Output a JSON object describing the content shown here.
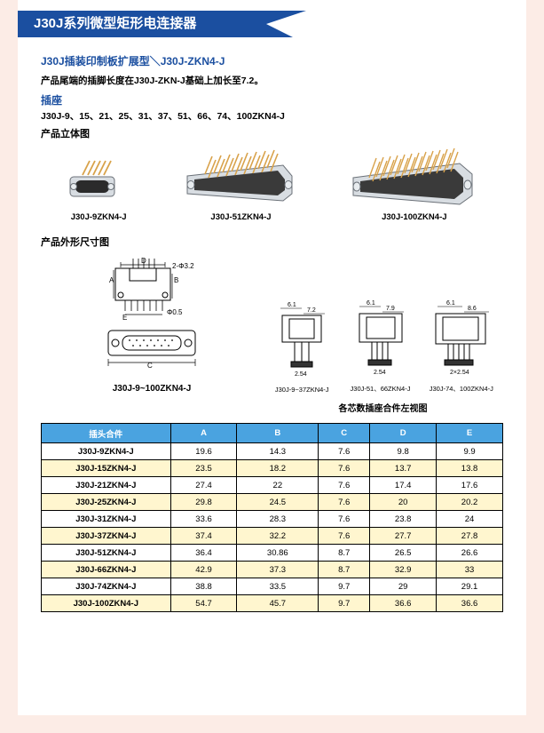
{
  "banner": {
    "title": "J30J系列微型矩形电连接器"
  },
  "header": {
    "subtitle": "J30J插装印制板扩展型＼J30J-ZKN4-J",
    "desc": "产品尾端的插脚长度在J30J-ZKN-J基础上加长至7.2。",
    "socket_title": "插座",
    "models": "J30J-9、15、21、25、31、37、51、66、74、100ZKN4-J",
    "view3d_label": "产品立体图",
    "outline_label": "产品外形尺寸图"
  },
  "products": {
    "items": [
      {
        "label": "J30J-9ZKN4-J"
      },
      {
        "label": "J30J-51ZKN4-J"
      },
      {
        "label": "J30J-100ZKN4-J"
      }
    ]
  },
  "drawings": {
    "left_caption": "J30J-9~100ZKN4-J",
    "right_caption": "各芯数插座合件左视图",
    "left_labels": {
      "D": "D",
      "hole1": "2-Φ3.2",
      "A": "A",
      "B": "B",
      "E": "E",
      "hole2": "Φ0.5",
      "C": "C"
    },
    "side_items": [
      {
        "top1": "6.1",
        "top2": "7.2",
        "bot1": "2.54",
        "cap": "J30J-9~37ZKN4-J"
      },
      {
        "top1": "6.1",
        "top2": "7.9",
        "bot1": "2.54",
        "cap": "J30J-51、66ZKN4-J"
      },
      {
        "top1": "6.1",
        "top2": "8.6",
        "bot1": "2×2.54",
        "cap": "J30J-74、100ZKN4-J"
      }
    ]
  },
  "table": {
    "header_part": "插头合件",
    "cols": [
      "A",
      "B",
      "C",
      "D",
      "E"
    ],
    "rows": [
      {
        "part": "J30J-9ZKN4-J",
        "vals": [
          "19.6",
          "14.3",
          "7.6",
          "9.8",
          "9.9"
        ],
        "alt": false
      },
      {
        "part": "J30J-15ZKN4-J",
        "vals": [
          "23.5",
          "18.2",
          "7.6",
          "13.7",
          "13.8"
        ],
        "alt": true
      },
      {
        "part": "J30J-21ZKN4-J",
        "vals": [
          "27.4",
          "22",
          "7.6",
          "17.4",
          "17.6"
        ],
        "alt": false
      },
      {
        "part": "J30J-25ZKN4-J",
        "vals": [
          "29.8",
          "24.5",
          "7.6",
          "20",
          "20.2"
        ],
        "alt": true
      },
      {
        "part": "J30J-31ZKN4-J",
        "vals": [
          "33.6",
          "28.3",
          "7.6",
          "23.8",
          "24"
        ],
        "alt": false
      },
      {
        "part": "J30J-37ZKN4-J",
        "vals": [
          "37.4",
          "32.2",
          "7.6",
          "27.7",
          "27.8"
        ],
        "alt": true
      },
      {
        "part": "J30J-51ZKN4-J",
        "vals": [
          "36.4",
          "30.86",
          "8.7",
          "26.5",
          "26.6"
        ],
        "alt": false
      },
      {
        "part": "J30J-66ZKN4-J",
        "vals": [
          "42.9",
          "37.3",
          "8.7",
          "32.9",
          "33"
        ],
        "alt": true
      },
      {
        "part": "J30J-74ZKN4-J",
        "vals": [
          "38.8",
          "33.5",
          "9.7",
          "29",
          "29.1"
        ],
        "alt": false
      },
      {
        "part": "J30J-100ZKN4-J",
        "vals": [
          "54.7",
          "45.7",
          "9.7",
          "36.6",
          "36.6"
        ],
        "alt": true
      }
    ]
  },
  "style": {
    "banner_bg": "#1b4fa0",
    "page_bg": "#fcece6",
    "table_header_bg": "#4aa3e0",
    "table_alt_bg": "#fff6cf",
    "connector_shell": "#d8dde2",
    "connector_shell_dark": "#9aa3ab",
    "pin_color": "#d8a24a",
    "title_fontsize": 15,
    "subtitle_fontsize": 12,
    "body_fontsize": 10.5,
    "table_fontsize": 9.5
  }
}
